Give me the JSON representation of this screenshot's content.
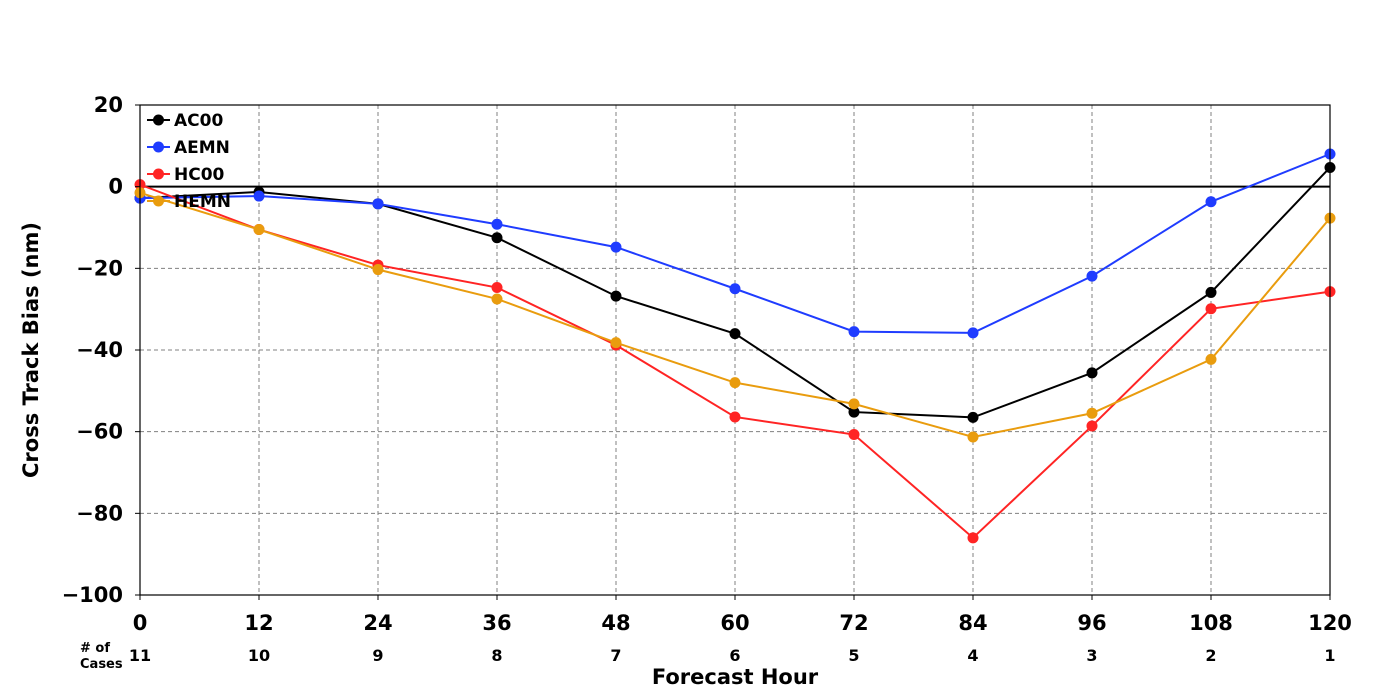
{
  "chart_data": {
    "type": "line",
    "title": "",
    "xlabel": "Forecast Hour",
    "ylabel": "Cross Track Bias (nm)",
    "x": [
      0,
      12,
      24,
      36,
      48,
      60,
      72,
      84,
      96,
      108,
      120
    ],
    "xticks": [
      "0",
      "12",
      "24",
      "36",
      "48",
      "60",
      "72",
      "84",
      "96",
      "108",
      "120"
    ],
    "xlim": [
      0,
      120
    ],
    "ylim": [
      -100,
      20
    ],
    "yticks": [
      20,
      0,
      -20,
      -40,
      -60,
      -80,
      -100
    ],
    "ytick_labels": [
      "20",
      "0",
      "−20",
      "−40",
      "−60",
      "−80",
      "−100"
    ],
    "grid": true,
    "zero_line": true,
    "legend_position": "top-left",
    "cases_label_line1": "# of",
    "cases_label_line2": "Cases",
    "cases": [
      "11",
      "10",
      "9",
      "8",
      "7",
      "6",
      "5",
      "4",
      "3",
      "2",
      "1"
    ],
    "series": [
      {
        "name": "AC00",
        "color": "#000000",
        "values": [
          -2.8,
          -1.3,
          -4.2,
          -12.5,
          -26.8,
          -36.0,
          -55.2,
          -56.5,
          -45.6,
          -25.9,
          4.7
        ]
      },
      {
        "name": "AEMN",
        "color": "#1f3cff",
        "values": [
          -2.8,
          -2.3,
          -4.2,
          -9.2,
          -14.8,
          -25.0,
          -35.5,
          -35.8,
          -21.9,
          -3.7,
          8.0
        ]
      },
      {
        "name": "HC00",
        "color": "#ff2424",
        "values": [
          0.5,
          -10.5,
          -19.2,
          -24.7,
          -38.8,
          -56.4,
          -60.7,
          -86.0,
          -58.6,
          -29.9,
          -25.7
        ]
      },
      {
        "name": "HEMN",
        "color": "#e99c0e",
        "values": [
          -1.5,
          -10.5,
          -20.3,
          -27.5,
          -38.2,
          -48.0,
          -53.2,
          -61.3,
          -55.5,
          -42.3,
          -7.7
        ]
      }
    ]
  }
}
